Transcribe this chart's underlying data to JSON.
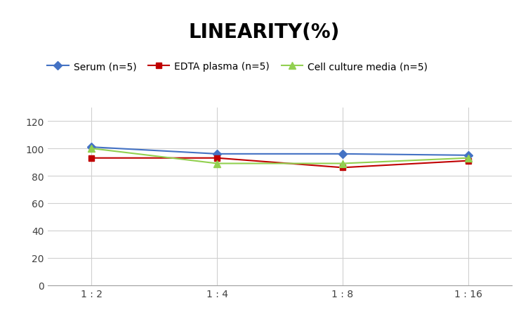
{
  "title": "LINEARITY(%)",
  "x_labels": [
    "1 : 2",
    "1 : 4",
    "1 : 8",
    "1 : 16"
  ],
  "x_positions": [
    0,
    1,
    2,
    3
  ],
  "series": [
    {
      "name": "Serum (n=5)",
      "values": [
        101,
        96,
        96,
        95
      ],
      "color": "#4472C4",
      "marker": "D",
      "markersize": 6,
      "linewidth": 1.5
    },
    {
      "name": "EDTA plasma (n=5)",
      "values": [
        93,
        93,
        86,
        91
      ],
      "color": "#C00000",
      "marker": "s",
      "markersize": 6,
      "linewidth": 1.5
    },
    {
      "name": "Cell culture media (n=5)",
      "values": [
        100,
        89,
        89,
        93
      ],
      "color": "#92D050",
      "marker": "^",
      "markersize": 7,
      "linewidth": 1.5
    }
  ],
  "ylim": [
    0,
    130
  ],
  "yticks": [
    0,
    20,
    40,
    60,
    80,
    100,
    120
  ],
  "title_fontsize": 20,
  "title_fontweight": "bold",
  "legend_fontsize": 10,
  "tick_fontsize": 10,
  "background_color": "#ffffff",
  "grid_color": "#d0d0d0",
  "xlim": [
    -0.35,
    3.35
  ]
}
